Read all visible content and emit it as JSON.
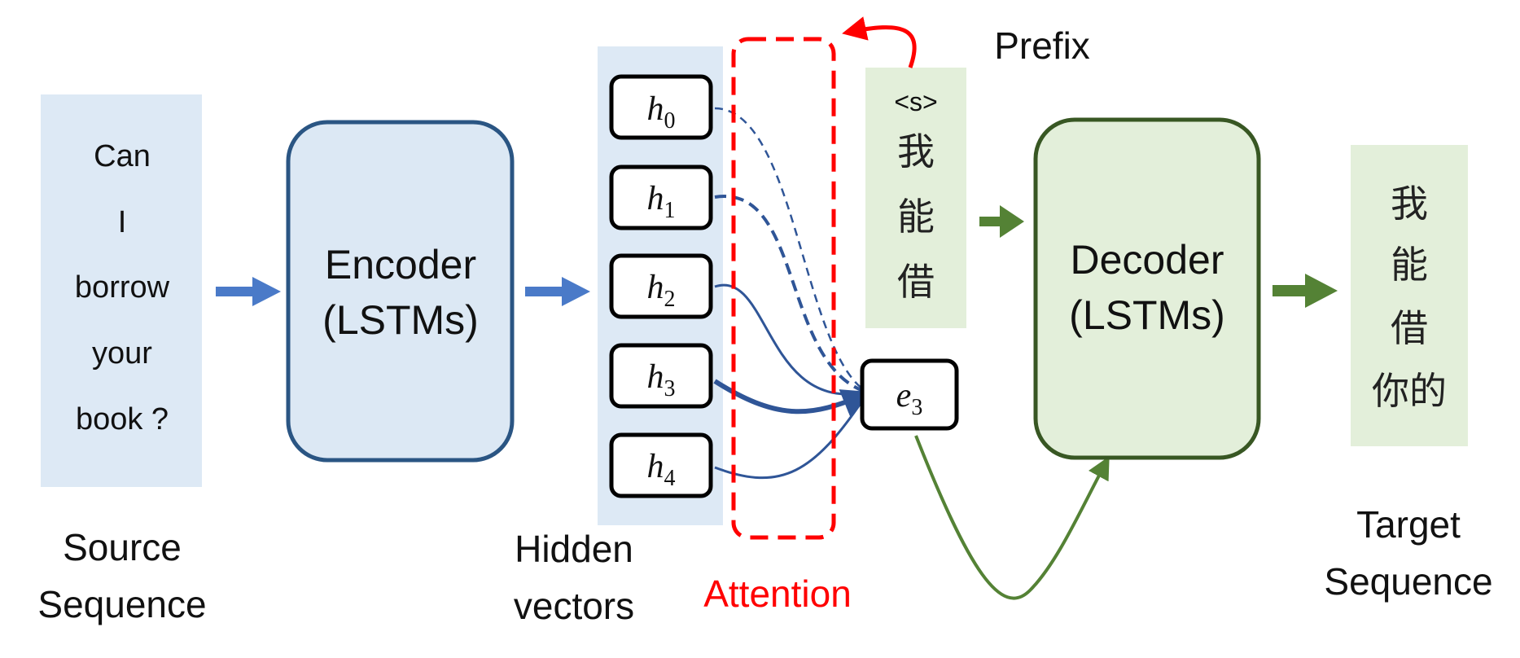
{
  "source": {
    "tokens": [
      "Can",
      "I",
      "borrow",
      "your",
      "book ?"
    ],
    "caption": [
      "Source",
      "Sequence"
    ]
  },
  "encoder": {
    "line1": "Encoder",
    "line2": "(LSTMs)"
  },
  "hidden": {
    "vectors": [
      {
        "sym": "h",
        "sub": "0"
      },
      {
        "sym": "h",
        "sub": "1"
      },
      {
        "sym": "h",
        "sub": "2"
      },
      {
        "sym": "h",
        "sub": "3"
      },
      {
        "sym": "h",
        "sub": "4"
      }
    ],
    "caption": [
      "Hidden",
      "vectors"
    ]
  },
  "attention": {
    "label": "Attention"
  },
  "context": {
    "sym": "e",
    "sub": "3"
  },
  "prefix": {
    "label": "Prefix",
    "tokens": [
      "<s>",
      "我",
      "能",
      "借"
    ]
  },
  "decoder": {
    "line1": "Decoder",
    "line2": "(LSTMs)"
  },
  "target": {
    "tokens": [
      "我",
      "能",
      "借",
      "你的"
    ],
    "caption": [
      "Target",
      "Sequence"
    ]
  },
  "colors": {
    "source_fill": "#dde9f5",
    "encoder_fill": "#dce8f4",
    "encoder_stroke": "#2a5583",
    "blue_arrow": "#4a7ac8",
    "attn_line": "#2f5597",
    "attention": "#ff0000",
    "green_fill": "#e3efda",
    "decoder_stroke": "#385723",
    "green_arrow": "#548235"
  }
}
